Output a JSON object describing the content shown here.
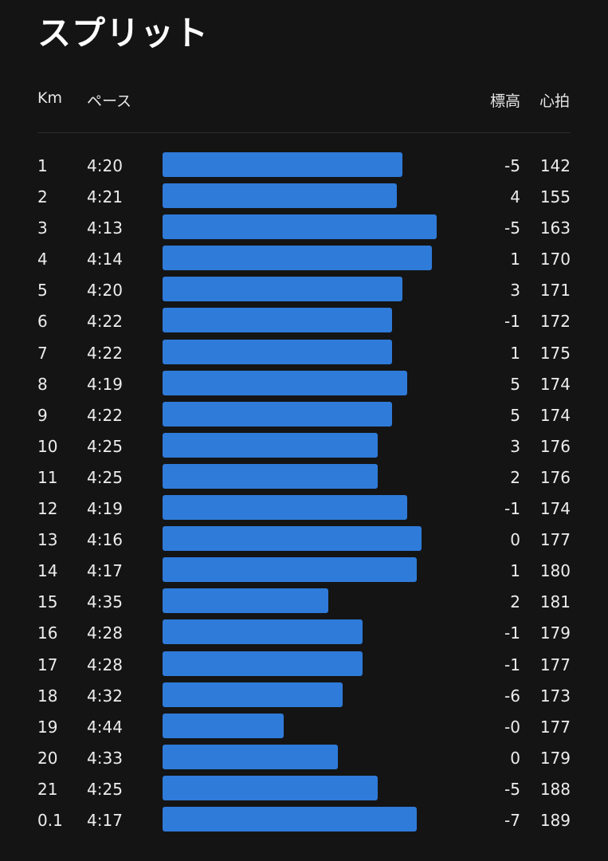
{
  "title": "スプリット",
  "headers": {
    "km": "Km",
    "pace": "ペース",
    "elevation": "標高",
    "heart_rate": "心拍"
  },
  "bar_color": "#2f7bd9",
  "splits": [
    {
      "km": "1",
      "pace": "4:20",
      "elevation": "-5",
      "heart_rate": "142"
    },
    {
      "km": "2",
      "pace": "4:21",
      "elevation": "4",
      "heart_rate": "155"
    },
    {
      "km": "3",
      "pace": "4:13",
      "elevation": "-5",
      "heart_rate": "163"
    },
    {
      "km": "4",
      "pace": "4:14",
      "elevation": "1",
      "heart_rate": "170"
    },
    {
      "km": "5",
      "pace": "4:20",
      "elevation": "3",
      "heart_rate": "171"
    },
    {
      "km": "6",
      "pace": "4:22",
      "elevation": "-1",
      "heart_rate": "172"
    },
    {
      "km": "7",
      "pace": "4:22",
      "elevation": "1",
      "heart_rate": "175"
    },
    {
      "km": "8",
      "pace": "4:19",
      "elevation": "5",
      "heart_rate": "174"
    },
    {
      "km": "9",
      "pace": "4:22",
      "elevation": "5",
      "heart_rate": "174"
    },
    {
      "km": "10",
      "pace": "4:25",
      "elevation": "3",
      "heart_rate": "176"
    },
    {
      "km": "11",
      "pace": "4:25",
      "elevation": "2",
      "heart_rate": "176"
    },
    {
      "km": "12",
      "pace": "4:19",
      "elevation": "-1",
      "heart_rate": "174"
    },
    {
      "km": "13",
      "pace": "4:16",
      "elevation": "0",
      "heart_rate": "177"
    },
    {
      "km": "14",
      "pace": "4:17",
      "elevation": "1",
      "heart_rate": "180"
    },
    {
      "km": "15",
      "pace": "4:35",
      "elevation": "2",
      "heart_rate": "181"
    },
    {
      "km": "16",
      "pace": "4:28",
      "elevation": "-1",
      "heart_rate": "179"
    },
    {
      "km": "17",
      "pace": "4:28",
      "elevation": "-1",
      "heart_rate": "177"
    },
    {
      "km": "18",
      "pace": "4:32",
      "elevation": "-6",
      "heart_rate": "173"
    },
    {
      "km": "19",
      "pace": "4:44",
      "elevation": "-0",
      "heart_rate": "177"
    },
    {
      "km": "20",
      "pace": "4:33",
      "elevation": "0",
      "heart_rate": "179"
    },
    {
      "km": "21",
      "pace": "4:25",
      "elevation": "-5",
      "heart_rate": "188"
    },
    {
      "km": "0.1",
      "pace": "4:17",
      "elevation": "-7",
      "heart_rate": "189"
    }
  ]
}
